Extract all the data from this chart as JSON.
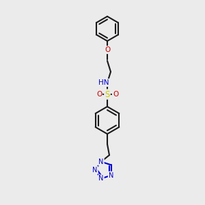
{
  "background_color": "#ebebeb",
  "bond_color": "#1a1a1a",
  "bond_lw": 1.5,
  "atom_colors": {
    "O": "#cc0000",
    "N": "#0000cc",
    "S": "#cccc00",
    "H": "#5c8a8a",
    "C": "#1a1a1a"
  },
  "font_size": 7.5,
  "font_size_H": 7.0
}
